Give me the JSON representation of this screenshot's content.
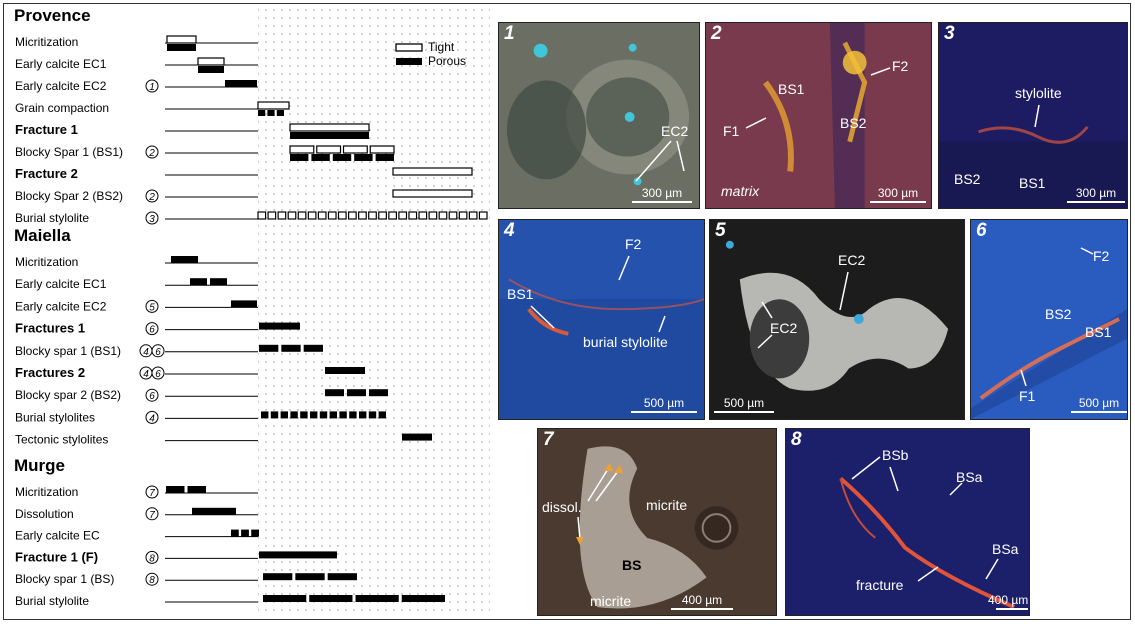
{
  "legend": {
    "tight": "Tight",
    "porous": "Porous"
  },
  "sections": [
    {
      "title": "Provence",
      "rows": [
        {
          "label": "Micritization",
          "bold": false,
          "refs": [],
          "bars": [
            {
              "t": "tight",
              "s": 167,
              "e": 196
            },
            {
              "t": "porous",
              "s": 167,
              "e": 196,
              "dy": 8
            }
          ]
        },
        {
          "label": "Early calcite EC1",
          "bold": false,
          "refs": [],
          "bars": [
            {
              "t": "tight",
              "s": 198,
              "e": 224
            },
            {
              "t": "porous",
              "s": 198,
              "e": 224,
              "dy": 8
            }
          ]
        },
        {
          "label": "Early calcite EC2",
          "bold": false,
          "refs": [
            "1"
          ],
          "bars": [
            {
              "t": "porous",
              "s": 225,
              "e": 257
            }
          ]
        },
        {
          "label": "Grain compaction",
          "bold": false,
          "refs": [],
          "bars": [
            {
              "t": "tight",
              "s": 258,
              "e": 289
            },
            {
              "t": "dashed",
              "s": 258,
              "e": 284,
              "dy": 8,
              "seg": 3
            }
          ]
        },
        {
          "label": "Fracture 1",
          "bold": true,
          "refs": [],
          "bars": [
            {
              "t": "tight",
              "s": 290,
              "e": 369
            },
            {
              "t": "porous",
              "s": 290,
              "e": 369,
              "dy": 8
            }
          ]
        },
        {
          "label": "Blocky Spar 1 (BS1)",
          "bold": false,
          "refs": [
            "2"
          ],
          "bars": [
            {
              "t": "tight",
              "s": 290,
              "e": 394,
              "seg": 4
            },
            {
              "t": "porous",
              "s": 290,
              "e": 394,
              "dy": 8,
              "seg": 5
            }
          ]
        },
        {
          "label": "Fracture 2",
          "bold": true,
          "refs": [],
          "bars": [
            {
              "t": "tight",
              "s": 393,
              "e": 472
            }
          ]
        },
        {
          "label": "Blocky Spar 2 (BS2)",
          "bold": false,
          "refs": [
            "2"
          ],
          "bars": [
            {
              "t": "tight",
              "s": 393,
              "e": 472
            }
          ]
        },
        {
          "label": "Burial stylolite",
          "bold": false,
          "refs": [
            "3"
          ],
          "bars": [
            {
              "t": "tight",
              "s": 258,
              "e": 487,
              "seg": 23
            }
          ]
        }
      ]
    },
    {
      "title": "Maiella",
      "rows": [
        {
          "label": "Micritization",
          "bold": false,
          "refs": [],
          "bars": [
            {
              "t": "porous",
              "s": 171,
              "e": 198
            }
          ]
        },
        {
          "label": "Early calcite EC1",
          "bold": false,
          "refs": [],
          "bars": [
            {
              "t": "porous",
              "s": 190,
              "e": 227,
              "seg": 2
            }
          ]
        },
        {
          "label": "Early calcite EC2",
          "bold": false,
          "refs": [
            "5"
          ],
          "bars": [
            {
              "t": "porous",
              "s": 231,
              "e": 257
            }
          ]
        },
        {
          "label": "Fractures 1",
          "bold": true,
          "refs": [
            "6"
          ],
          "bars": [
            {
              "t": "porous",
              "s": 259,
              "e": 300
            }
          ]
        },
        {
          "label": "Blocky spar 1 (BS1)",
          "bold": false,
          "refs": [
            "4",
            "6"
          ],
          "bars": [
            {
              "t": "porous",
              "s": 259,
              "e": 323,
              "seg": 3
            }
          ]
        },
        {
          "label": "Fractures 2",
          "bold": true,
          "refs": [
            "4",
            "6"
          ],
          "bars": [
            {
              "t": "porous",
              "s": 325,
              "e": 365
            }
          ]
        },
        {
          "label": "Blocky spar 2 (BS2)",
          "bold": false,
          "refs": [
            "6"
          ],
          "bars": [
            {
              "t": "porous",
              "s": 325,
              "e": 388,
              "seg": 3
            }
          ]
        },
        {
          "label": "Burial stylolites",
          "bold": false,
          "refs": [
            "4"
          ],
          "bars": [
            {
              "t": "porous",
              "s": 261,
              "e": 386,
              "seg": 13
            }
          ]
        },
        {
          "label": "Tectonic stylolites",
          "bold": false,
          "refs": [],
          "bars": [
            {
              "t": "porous",
              "s": 402,
              "e": 432
            }
          ]
        }
      ]
    },
    {
      "title": "Murge",
      "rows": [
        {
          "label": "Micritization",
          "bold": false,
          "refs": [
            "7"
          ],
          "bars": [
            {
              "t": "porous",
              "s": 166,
              "e": 206,
              "seg": 2
            }
          ]
        },
        {
          "label": "Dissolution",
          "bold": false,
          "refs": [
            "7"
          ],
          "bars": [
            {
              "t": "porous",
              "s": 192,
              "e": 236
            }
          ]
        },
        {
          "label": "Early calcite EC",
          "bold": false,
          "refs": [],
          "bars": [
            {
              "t": "porous",
              "s": 231,
              "e": 259,
              "seg": 3
            }
          ]
        },
        {
          "label": "Fracture 1 (F)",
          "bold": true,
          "refs": [
            "8"
          ],
          "bars": [
            {
              "t": "porous",
              "s": 259,
              "e": 337
            }
          ]
        },
        {
          "label": "Blocky spar 1 (BS)",
          "bold": false,
          "refs": [
            "8"
          ],
          "bars": [
            {
              "t": "porous",
              "s": 263,
              "e": 357,
              "seg": 3
            }
          ]
        },
        {
          "label": "Burial stylolite",
          "bold": false,
          "refs": [],
          "bars": [
            {
              "t": "porous",
              "s": 263,
              "e": 445,
              "seg": 4
            }
          ]
        }
      ]
    }
  ],
  "photos": [
    {
      "num": "1",
      "scale": "300 µm",
      "labels": [
        "EC2"
      ],
      "colors": [
        "#6b6f63",
        "#3f4a41",
        "#9a9b90"
      ]
    },
    {
      "num": "2",
      "scale": "300 µm",
      "labels": [
        "BS1",
        "F2",
        "F1",
        "BS2"
      ],
      "italic": "matrix",
      "colors": [
        "#7a3a4e",
        "#4a2a56",
        "#b0584a"
      ]
    },
    {
      "num": "3",
      "scale": "300 µm",
      "labels": [
        "stylolite",
        "BS2",
        "BS1"
      ],
      "colors": [
        "#1d1c62",
        "#2a2470",
        "#15164a"
      ]
    },
    {
      "num": "4",
      "scale": "500 µm",
      "labels": [
        "F2",
        "BS1",
        "burial stylolite"
      ],
      "colors": [
        "#1f4aa0",
        "#2a5ab8",
        "#1a3a88"
      ]
    },
    {
      "num": "5",
      "scale": "500 µm",
      "labels": [
        "EC2",
        "EC2"
      ],
      "colors": [
        "#1c1c1c",
        "#c9c9c4",
        "#3c3c3c"
      ]
    },
    {
      "num": "6",
      "scale": "500 µm",
      "labels": [
        "F2",
        "BS2",
        "BS1",
        "F1"
      ],
      "colors": [
        "#2a5cc0",
        "#3a6ad0",
        "#2248a0"
      ]
    },
    {
      "num": "7",
      "scale": "400 µm",
      "labels": [
        "dissol.",
        "micrite",
        "BS",
        "micrite"
      ],
      "colors": [
        "#4a3a30",
        "#b8b0a4",
        "#2e241e"
      ]
    },
    {
      "num": "8",
      "scale": "400 µm",
      "labels": [
        "BSb",
        "BSa",
        "BSa",
        "fracture"
      ],
      "colors": [
        "#1c1f6a",
        "#252a78",
        "#151852"
      ]
    }
  ]
}
